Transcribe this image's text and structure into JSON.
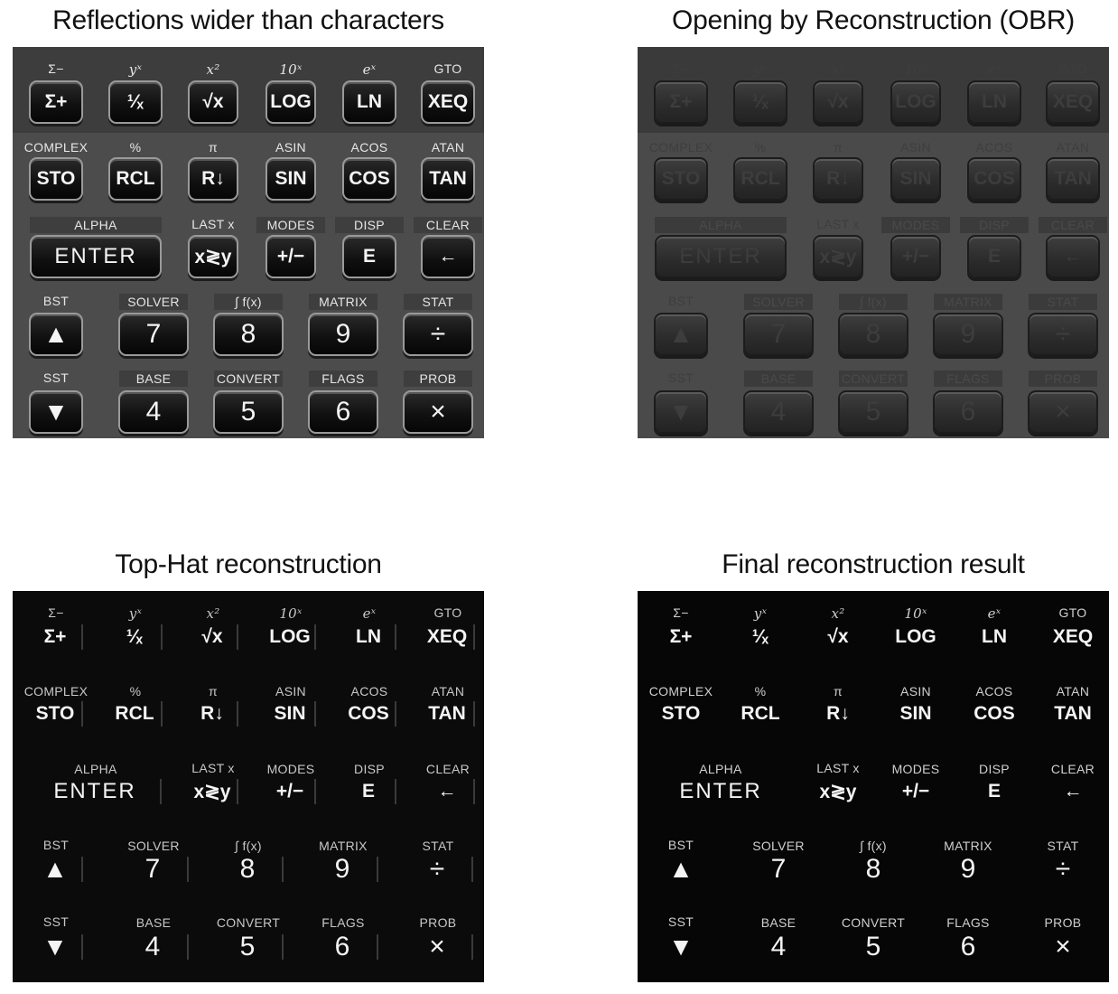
{
  "titles": {
    "top_left": "Reflections wider than characters",
    "top_right": "Opening by Reconstruction (OBR)",
    "bottom_left": "Top-Hat reconstruction",
    "bottom_right": "Final reconstruction result"
  },
  "keypad": {
    "row1_labels": [
      "Σ−",
      "yˣ",
      "x²",
      "10ˣ",
      "eˣ",
      "GTO"
    ],
    "row1_keys": [
      "Σ+",
      "¹⁄ₓ",
      "√x",
      "LOG",
      "LN",
      "XEQ"
    ],
    "row2_labels": [
      "COMPLEX",
      "%",
      "π",
      "ASIN",
      "ACOS",
      "ATAN"
    ],
    "row2_keys": [
      "STO",
      "RCL",
      "R↓",
      "SIN",
      "COS",
      "TAN"
    ],
    "row3_labels": [
      "ALPHA",
      "LAST x",
      "MODES",
      "DISP",
      "CLEAR"
    ],
    "row3_keys": [
      "ENTER",
      "x≷y",
      "+/−",
      "E",
      "←"
    ],
    "row4_labels": [
      "BST",
      "SOLVER",
      "∫ f(x)",
      "MATRIX",
      "STAT"
    ],
    "row4_keys": [
      "▲",
      "7",
      "8",
      "9",
      "÷"
    ],
    "row5_labels": [
      "SST",
      "BASE",
      "CONVERT",
      "FLAGS",
      "PROB"
    ],
    "row5_keys": [
      "▼",
      "4",
      "5",
      "6",
      "×"
    ]
  }
}
